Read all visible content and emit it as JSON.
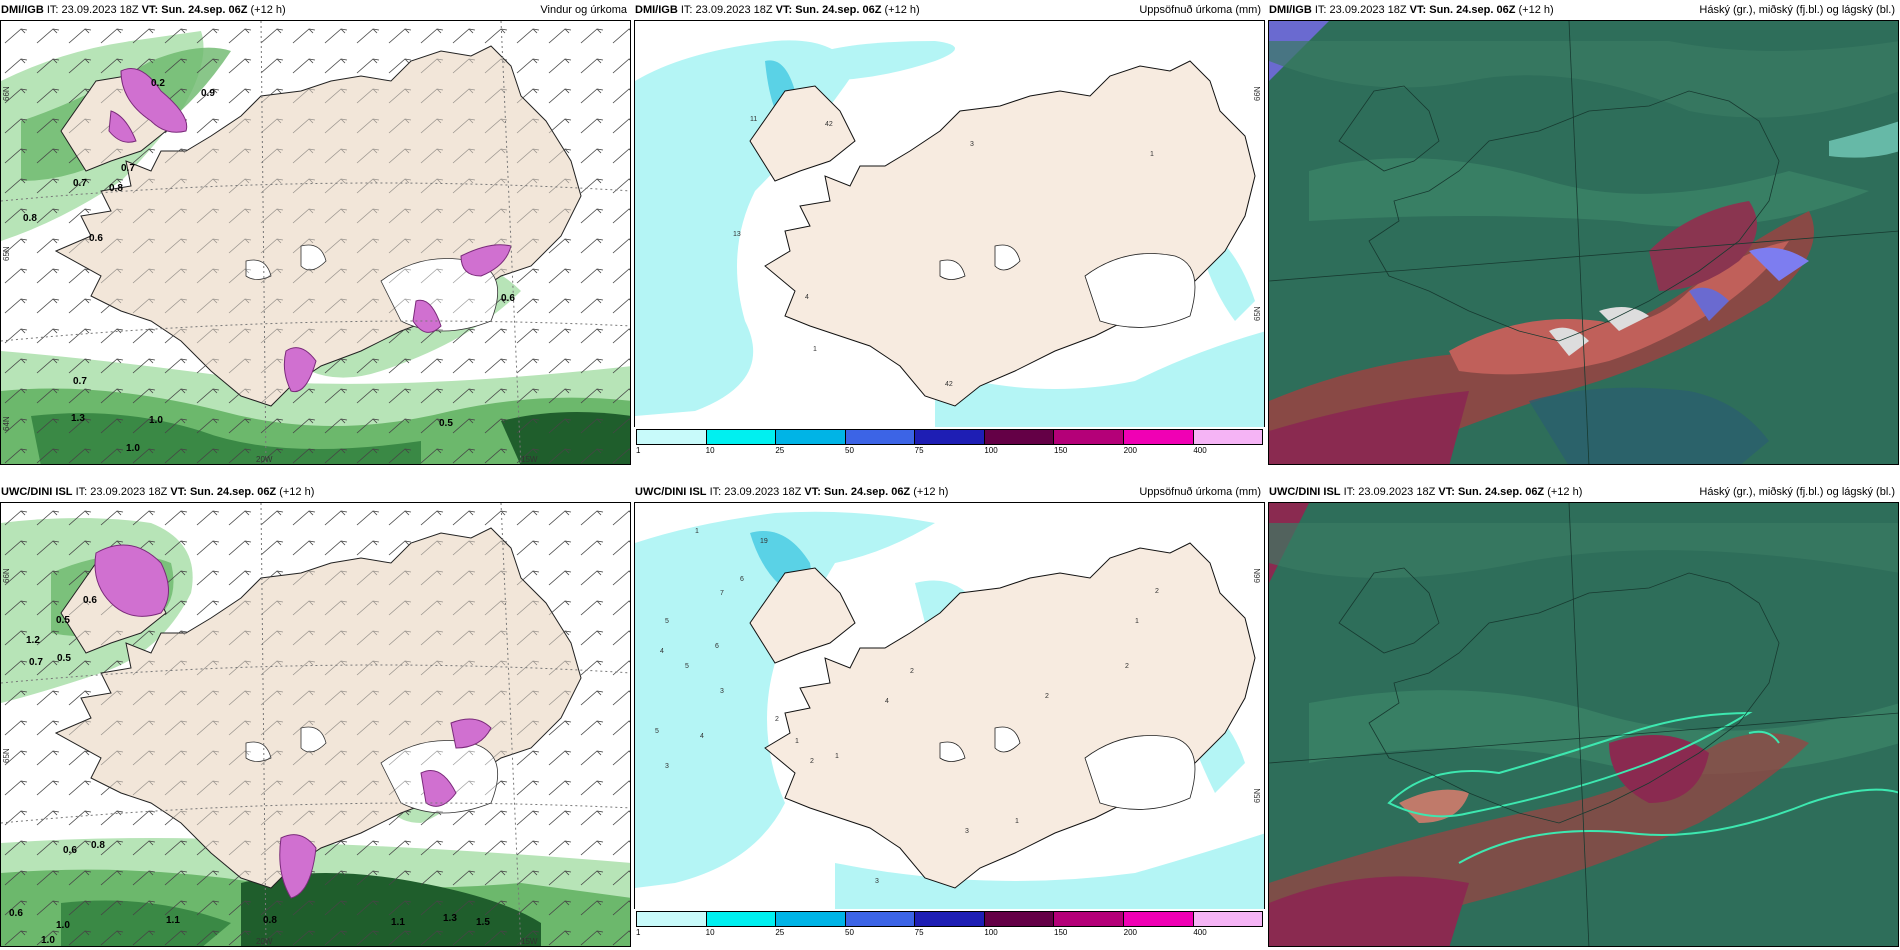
{
  "panels": [
    {
      "model": "DMI/IGB",
      "it_prefix": "IT:",
      "it": "23.09.2023 18Z",
      "vt_prefix": "VT:",
      "vt": "Sun. 24.sep. 06Z",
      "lead": "(+12 h)",
      "field": "Vindur og úrkoma"
    },
    {
      "model": "DMI/IGB",
      "it_prefix": "IT:",
      "it": "23.09.2023 18Z",
      "vt_prefix": "VT:",
      "vt": "Sun. 24.sep. 06Z",
      "lead": "(+12 h)",
      "field": "Uppsöfnuð úrkoma (mm)"
    },
    {
      "model": "DMI/IGB",
      "it_prefix": "IT:",
      "it": "23.09.2023 18Z",
      "vt_prefix": "VT:",
      "vt": "Sun. 24.sep. 06Z",
      "lead": "(+12 h)",
      "field": "Háský (gr.), miðský (fj.bl.) og lágský (bl.)"
    },
    {
      "model": "UWC/DINI ISL",
      "it_prefix": "IT:",
      "it": "23.09.2023 18Z",
      "vt_prefix": "VT:",
      "vt": "Sun. 24.sep. 06Z",
      "lead": "(+12 h)",
      "field": ""
    },
    {
      "model": "UWC/DINI ISL",
      "it_prefix": "IT:",
      "it": "23.09.2023 18Z",
      "vt_prefix": "VT:",
      "vt": "Sun. 24.sep. 06Z",
      "lead": "(+12 h)",
      "field": "Uppsöfnuð úrkoma (mm)"
    },
    {
      "model": "UWC/DINI ISL",
      "it_prefix": "IT:",
      "it": "23.09.2023 18Z",
      "vt_prefix": "VT:",
      "vt": "Sun. 24.sep. 06Z",
      "lead": "(+12 h)",
      "field": "Háský (gr.), miðský (fj.bl.) og lágský (bl.)"
    }
  ],
  "axis_labels": {
    "lon_20w": "20W",
    "lon_15w": "15W",
    "lat_66n": "66N",
    "lat_65n": "65N",
    "lat_64n": "64N"
  },
  "colorbar": {
    "ticks": [
      "1",
      "10",
      "25",
      "50",
      "75",
      "100",
      "150",
      "200",
      "400"
    ],
    "colors": [
      "#c8fafa",
      "#00f0f0",
      "#00b4e6",
      "#3c64e6",
      "#1e1eb4",
      "#640046",
      "#b40078",
      "#f000b4",
      "#f5b4f5"
    ]
  },
  "wind_labels_top": [
    "0.9",
    "0.2",
    "0.7",
    "0.8",
    "0.7",
    "0.8",
    "0.6",
    "0.6",
    "0.7",
    "1.3",
    "1.0",
    "1.0",
    "0.5"
  ],
  "wind_labels_bottom": [
    "0.6",
    "0.5",
    "0.7",
    "1.2",
    "0.5",
    "0.6",
    "0.8",
    "1.0",
    "1.0",
    "1.1",
    "1.1",
    "1.3",
    "1.5",
    "0.8",
    "0.6"
  ],
  "precip_labels_top": [
    "11",
    "42",
    "3",
    "1",
    "13",
    "4",
    "1",
    "42"
  ],
  "precip_labels_bottom": [
    "1",
    "19",
    "7",
    "6",
    "5",
    "4",
    "5",
    "6",
    "5",
    "3",
    "4",
    "3",
    "2",
    "1",
    "2",
    "1",
    "4",
    "2",
    "3",
    "1",
    "2",
    "2",
    "1",
    "2",
    "3"
  ],
  "colors": {
    "land": "#f2e6d9",
    "ice": "#ffffff",
    "sea": "#ffffff",
    "precip_light": "#b4f5f5",
    "wind_green": "#5aa05a",
    "cloud_base": "#2e6e5a"
  }
}
